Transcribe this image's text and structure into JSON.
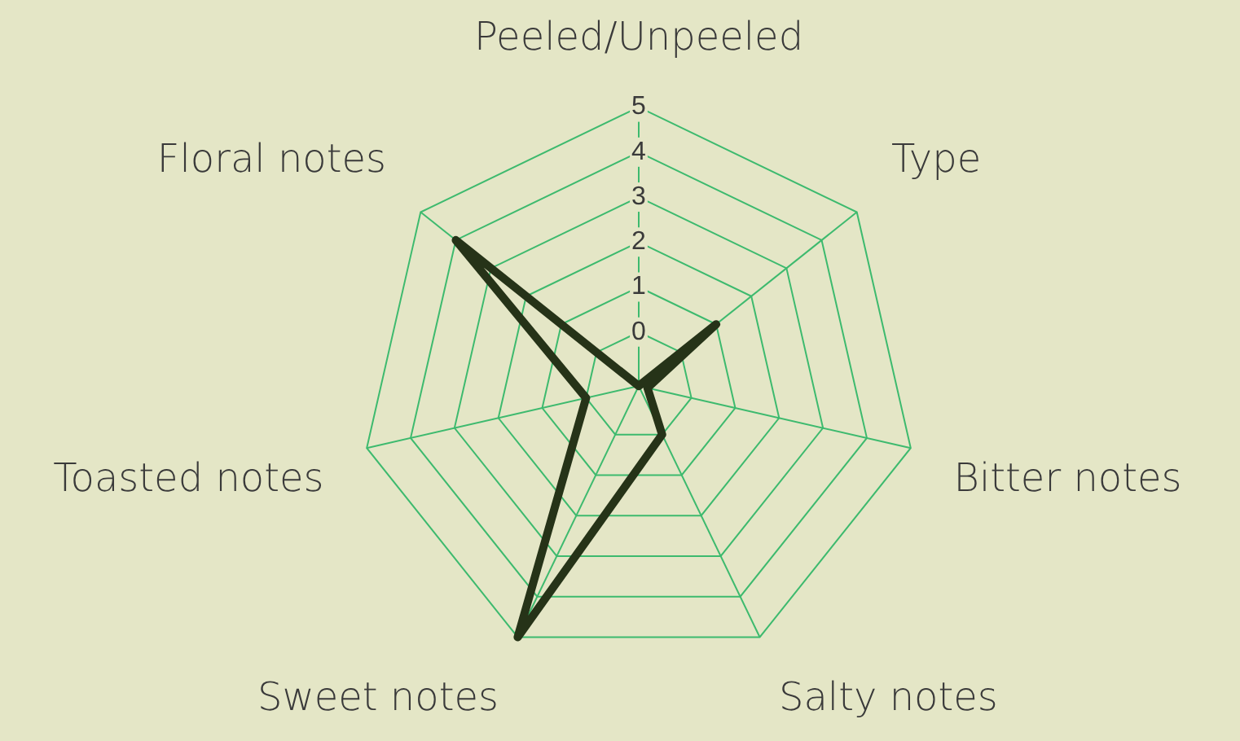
{
  "chart_data": {
    "type": "radar",
    "categories": [
      "Peeled/Unpeeled",
      "Type",
      "Bitter notes",
      "Salty notes",
      "Sweet notes",
      "Toasted notes",
      "Floral notes"
    ],
    "series": [
      {
        "color": "#263318",
        "values": [
          -1.2,
          1,
          -1,
          0,
          5,
          0,
          4
        ]
      }
    ],
    "ylim": [
      -1.2,
      5
    ],
    "yticks": [
      0,
      1,
      2,
      3,
      4,
      5
    ],
    "grid": true,
    "marker": "none",
    "line_style": "solid"
  }
}
